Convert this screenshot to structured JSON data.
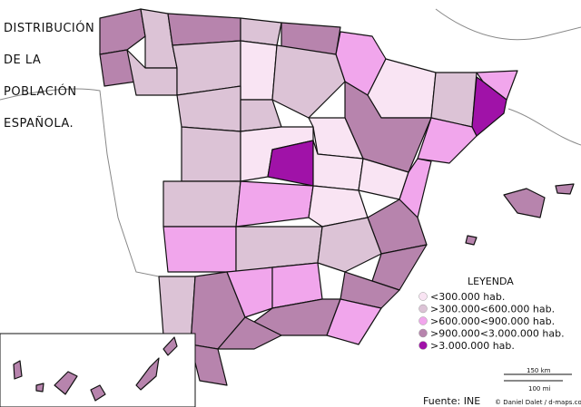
{
  "title_lines": [
    "DISTRIBUCIÓN",
    "DE LA",
    "POBLACIÓN",
    "ESPAÑOLA."
  ],
  "legend": {
    "title": "LEYENDA",
    "items": [
      {
        "label": "<300.000 hab.",
        "color": "#f9e4f3"
      },
      {
        "label": ">300.000<600.000 hab.",
        "color": "#dcc3d6"
      },
      {
        "label": ">600.000<900.000 hab.",
        "color": "#f1a6ec"
      },
      {
        "label": ">900.000<3.000.000 hab.",
        "color": "#b784ad"
      },
      {
        "label": ">3.000.000 hab.",
        "color": "#a012a8"
      }
    ]
  },
  "source": "Fuente: INE",
  "credit": "© Daniel Dalet / d-maps.com",
  "scale": {
    "km": "150 km",
    "mi": "100 mi"
  }
}
